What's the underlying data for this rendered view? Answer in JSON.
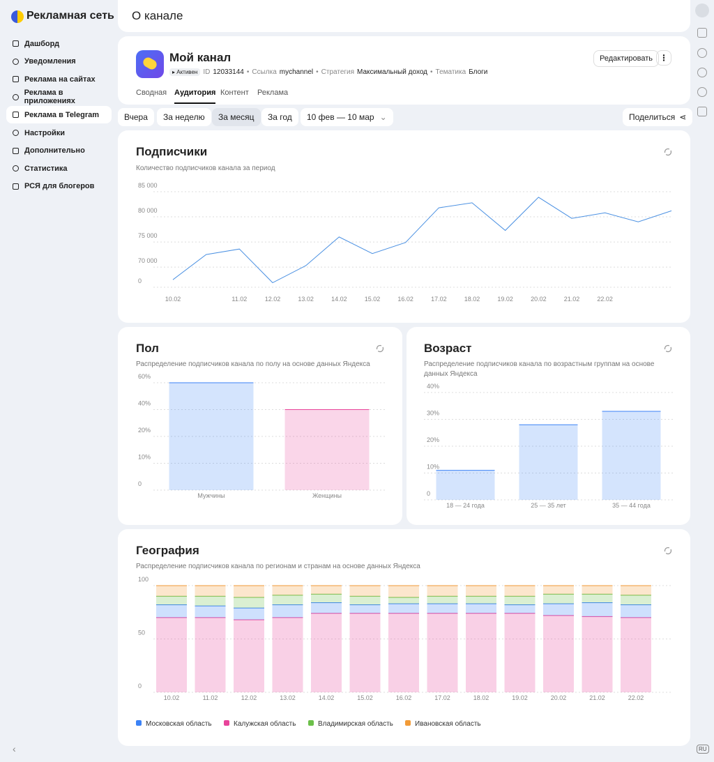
{
  "sidebar": {
    "logo": "Рекламная сеть",
    "items": [
      "Дашборд",
      "Уведомления",
      "Реклама на сайтах",
      "Реклама в приложениях",
      "Реклама в Telegram",
      "Настройки",
      "Дополнительно",
      "Статистика",
      "РСЯ для блогеров"
    ],
    "active": 4
  },
  "header": {
    "title": "О канале"
  },
  "channel": {
    "name": "Мой канал",
    "status": "Активен",
    "id_label": "ID",
    "id": "12033144",
    "link_label": "Ссылка",
    "link": "mychannel",
    "strategy_label": "Стратегия",
    "strategy": "Максимальный доход",
    "topic_label": "Тематика",
    "topic": "Блоги",
    "edit": "Редактировать",
    "tabs": [
      "Сводная",
      "Аудитория",
      "Контент",
      "Реклама"
    ],
    "active_tab": 1
  },
  "periods": {
    "buttons": [
      "Вчера",
      "За неделю",
      "За месяц",
      "За год"
    ],
    "active": 2,
    "range": "10 фев — 10 мар",
    "share": "Поделиться"
  },
  "footer": {
    "lang": "RU"
  },
  "chart_data": [
    {
      "type": "line",
      "title": "Подписчики",
      "subtitle": "Количество подписчиков канала за период",
      "color": "#4a90e2",
      "categories": [
        "10.02",
        null,
        "11.02",
        "12.02",
        "13.02",
        "14.02",
        "15.02",
        "16.02",
        "17.02",
        "18.02",
        "19.02",
        "20.02",
        "21.02",
        "22.02",
        null,
        null
      ],
      "values": [
        67500,
        72500,
        73600,
        66900,
        70300,
        76000,
        72700,
        74900,
        81800,
        82800,
        77300,
        83900,
        79700,
        80800,
        79000,
        81200
      ],
      "ylim": [
        66000,
        85000
      ],
      "yticks": [
        0,
        {
          "value": 70000,
          "label": "70 000"
        },
        {
          "value": 75000,
          "label": "75 000"
        },
        {
          "value": 80000,
          "label": "80 000"
        },
        {
          "value": 85000,
          "label": "85 000"
        }
      ],
      "grid": true
    },
    {
      "type": "bar",
      "title": "Пол",
      "subtitle": "Распределение подписчиков канала по полу на основе данных Яндекса",
      "categories": [
        "Мужчины",
        "Женщины"
      ],
      "values": [
        60,
        40
      ],
      "colors": [
        "#3b82f6",
        "#e8449a"
      ],
      "ylim": [
        0,
        60
      ],
      "yticks": [
        0,
        {
          "value": 10,
          "label": "10%"
        },
        {
          "value": 20,
          "label": "20%"
        },
        {
          "value": 40,
          "label": "40%"
        },
        {
          "value": 60,
          "label": "60%"
        }
      ],
      "grid": true
    },
    {
      "type": "bar",
      "title": "Возраст",
      "subtitle": "Распределение подписчиков канала по возрастным группам на основе данных Яндекса",
      "categories": [
        "18 — 24 года",
        "25 — 35 лет",
        "35 — 44 года"
      ],
      "values": [
        11,
        28,
        33
      ],
      "color": "#3b82f6",
      "ylim": [
        0,
        40
      ],
      "yticks": [
        0,
        {
          "value": 10,
          "label": "10%"
        },
        {
          "value": 20,
          "label": "20%"
        },
        {
          "value": 30,
          "label": "30%"
        },
        {
          "value": 40,
          "label": "40%"
        }
      ],
      "grid": true
    },
    {
      "type": "stacked_bar",
      "title": "География",
      "subtitle": "Распределение подписчиков канала по регионам и странам на основе данных Яндекса",
      "categories": [
        "10.02",
        "11.02",
        "12.02",
        "13.02",
        "14.02",
        "15.02",
        "16.02",
        "17.02",
        "18.02",
        "19.02",
        "20.02",
        "21.02",
        "22.02"
      ],
      "series": [
        {
          "name": "Московская область",
          "color": "#3b82f6",
          "values": [
            12,
            11,
            11,
            12,
            10,
            8,
            9,
            9,
            9,
            8,
            11,
            13,
            12
          ]
        },
        {
          "name": "Калужская область",
          "color": "#e8449a",
          "values": [
            70,
            70,
            68,
            70,
            74,
            74,
            74,
            74,
            74,
            74,
            72,
            71,
            70
          ]
        },
        {
          "name": "Владимирская область",
          "color": "#6cc04a",
          "values": [
            8,
            9,
            10,
            9,
            8,
            8,
            6,
            7,
            7,
            8,
            9,
            8,
            9
          ]
        },
        {
          "name": "Ивановская область",
          "color": "#f29b38",
          "values": [
            10,
            10,
            11,
            9,
            8,
            10,
            11,
            10,
            10,
            10,
            8,
            8,
            9
          ]
        }
      ],
      "stack_order": [
        1,
        0,
        2,
        3
      ],
      "ylim": [
        0,
        100
      ],
      "yticks": [
        0,
        50,
        100
      ],
      "grid": true
    }
  ]
}
